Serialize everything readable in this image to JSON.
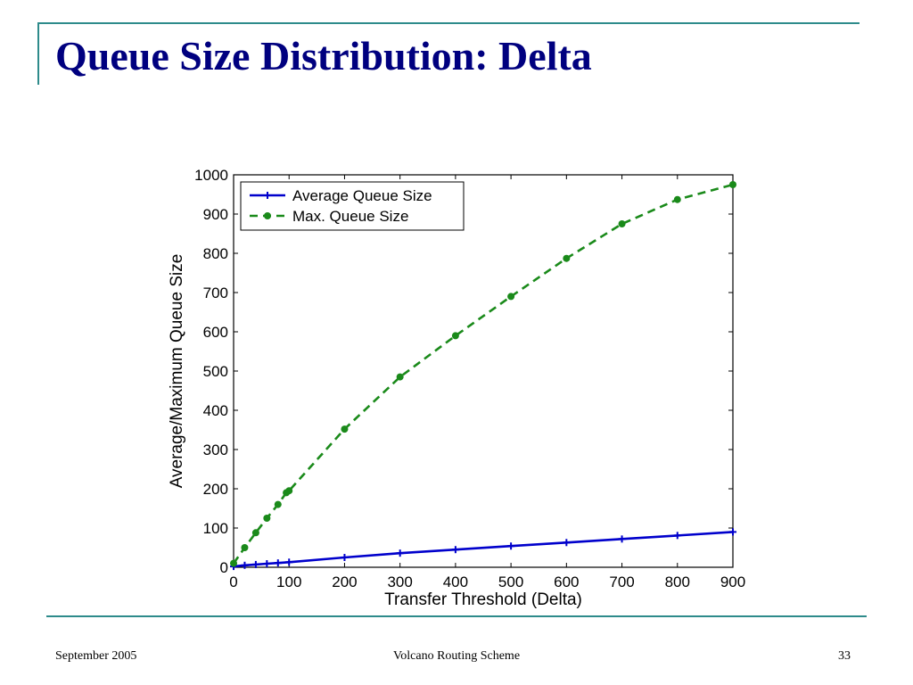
{
  "slide": {
    "title": "Queue Size Distribution: Delta",
    "footer_left": "September 2005",
    "footer_center": "Volcano Routing Scheme",
    "footer_right": "33"
  },
  "chart_data": {
    "type": "line",
    "title": "",
    "xlabel": "Transfer Threshold (Delta)",
    "ylabel": "Average/Maximum Queue Size",
    "xlim": [
      0,
      900
    ],
    "ylim": [
      0,
      1000
    ],
    "xticks": [
      0,
      100,
      200,
      300,
      400,
      500,
      600,
      700,
      800,
      900
    ],
    "yticks": [
      0,
      100,
      200,
      300,
      400,
      500,
      600,
      700,
      800,
      900,
      1000
    ],
    "grid": false,
    "legend_position": "top-left",
    "series": [
      {
        "name": "Average Queue Size",
        "color": "#0000cc",
        "line_style": "solid",
        "marker": "plus",
        "x": [
          0,
          20,
          40,
          60,
          80,
          100,
          200,
          300,
          400,
          500,
          600,
          700,
          800,
          900
        ],
        "y": [
          2,
          5,
          7,
          9,
          11,
          13,
          25,
          36,
          45,
          54,
          63,
          72,
          81,
          90
        ]
      },
      {
        "name": "Max. Queue Size",
        "color": "#1a8a1a",
        "line_style": "dashed",
        "marker": "circle",
        "x": [
          0,
          20,
          40,
          60,
          80,
          95,
          100,
          200,
          300,
          400,
          500,
          600,
          700,
          800,
          900
        ],
        "y": [
          10,
          50,
          88,
          125,
          160,
          190,
          195,
          352,
          485,
          590,
          690,
          787,
          875,
          937,
          975
        ]
      }
    ]
  }
}
